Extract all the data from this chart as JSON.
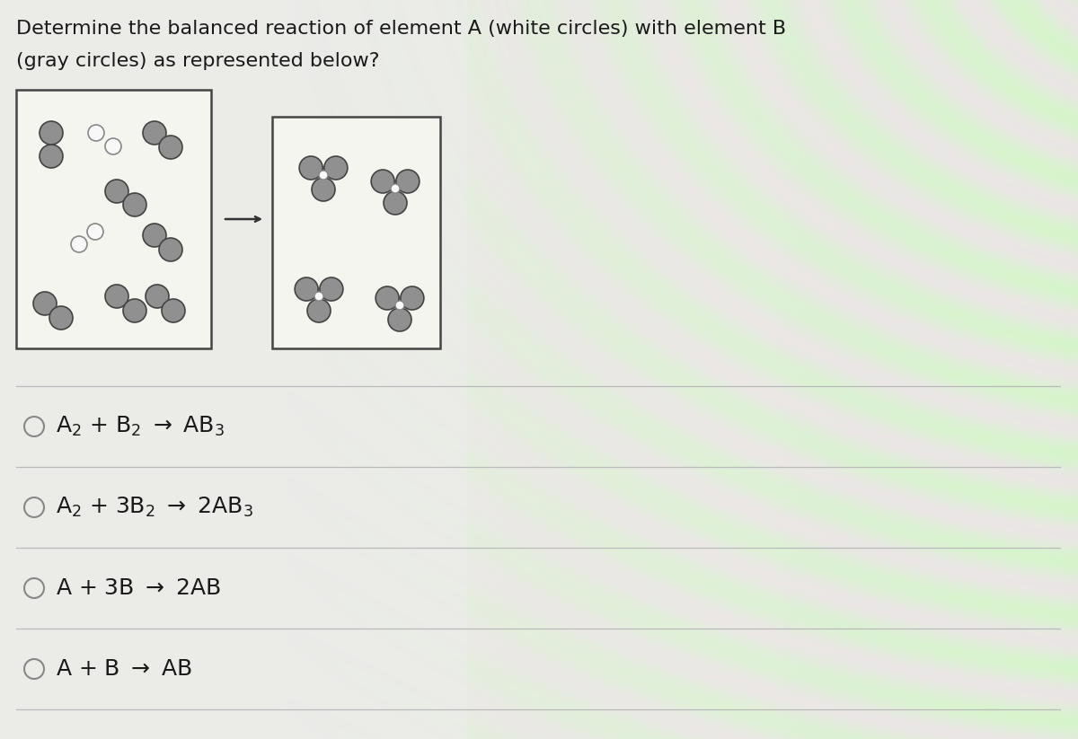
{
  "title_line1": "Determine the balanced reaction of element A (white circles) with element B",
  "title_line2": "(gray circles) as represented below?",
  "title_fontsize": 16,
  "bg_color_left": "#f0f0ec",
  "bg_color_right": "#c8e8d0",
  "box_color": "#f5f5f0",
  "box_edge_color": "#444444",
  "gray_circle_color": "#909090",
  "white_circle_color": "#f8f8f8",
  "gray_circle_edge": "#444444",
  "white_circle_edge": "#888888",
  "option_fontsize": 18,
  "radio_color": "#888888",
  "line_color": "#bbbbbb",
  "arrow_color": "#333333"
}
